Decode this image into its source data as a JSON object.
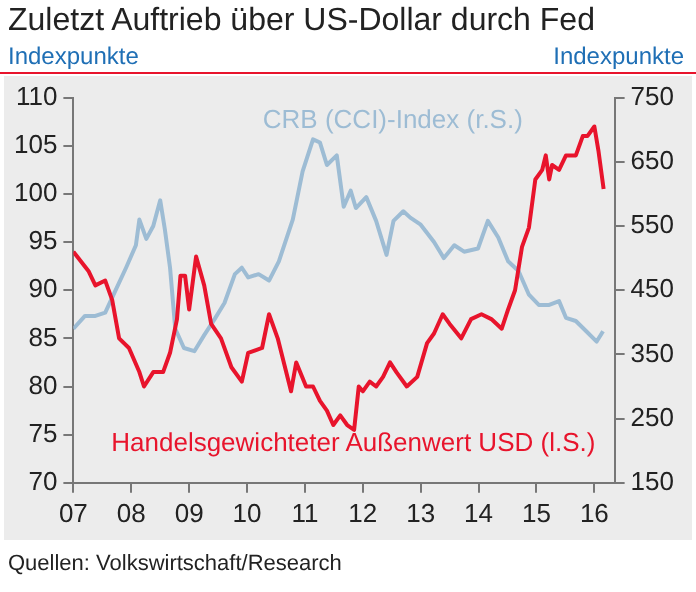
{
  "chart_data": {
    "type": "line",
    "title": "Zuletzt Auftrieb über US-Dollar durch Fed",
    "ylabel": "Indexpunkte",
    "y2label": "Indexpunkte",
    "annotations": [
      "Quellen: Volkswirtschaft/Research"
    ],
    "series": [
      {
        "name": "Handelsgewichteter Außenwert USD (l.S.)",
        "color": "#e8142c",
        "axis": "y",
        "x": [
          2007.0,
          2007.26,
          2007.38,
          2007.55,
          2007.67,
          2007.79,
          2007.96,
          2008.14,
          2008.22,
          2008.38,
          2008.55,
          2008.67,
          2008.79,
          2008.85,
          2008.93,
          2009.0,
          2009.12,
          2009.26,
          2009.38,
          2009.55,
          2009.73,
          2009.91,
          2010.02,
          2010.26,
          2010.38,
          2010.53,
          2010.76,
          2010.85,
          2011.02,
          2011.14,
          2011.26,
          2011.38,
          2011.49,
          2011.61,
          2011.73,
          2011.85,
          2011.93,
          2012.0,
          2012.12,
          2012.23,
          2012.35,
          2012.47,
          2012.58,
          2012.76,
          2012.94,
          2013.11,
          2013.23,
          2013.38,
          2013.5,
          2013.7,
          2013.87,
          2014.05,
          2014.22,
          2014.4,
          2014.51,
          2014.63,
          2014.75,
          2014.87,
          2014.98,
          2015.1,
          2015.16,
          2015.22,
          2015.27,
          2015.39,
          2015.51,
          2015.68,
          2015.8,
          2015.88,
          2016.0,
          2016.07,
          2016.16
        ],
        "values": [
          94,
          92,
          90.5,
          91,
          89,
          85,
          84,
          81.5,
          80,
          81.5,
          81.5,
          83.5,
          87,
          91.5,
          91.5,
          88,
          93.5,
          90.5,
          86.5,
          85,
          82,
          80.5,
          83.5,
          84,
          87.5,
          85,
          79.5,
          82.5,
          80,
          80,
          78.5,
          77.5,
          76,
          77,
          76,
          75.5,
          80,
          79.5,
          80.5,
          80,
          81,
          82.5,
          81.5,
          80,
          81,
          84.5,
          85.5,
          87.5,
          86.5,
          85,
          87,
          87.5,
          87,
          86,
          88,
          90,
          94.5,
          96.5,
          101.5,
          102.5,
          104,
          101.5,
          103,
          102.5,
          104,
          104,
          106,
          106,
          107,
          104.5,
          100.5
        ]
      },
      {
        "name": "CRB (CCI)-Index (r.S.)",
        "color": "#9dbcd4",
        "axis": "y2",
        "x": [
          2007.0,
          2007.2,
          2007.38,
          2007.55,
          2007.73,
          2007.91,
          2008.08,
          2008.14,
          2008.26,
          2008.38,
          2008.5,
          2008.58,
          2008.67,
          2008.76,
          2008.91,
          2009.09,
          2009.26,
          2009.44,
          2009.61,
          2009.79,
          2009.91,
          2010.02,
          2010.2,
          2010.38,
          2010.55,
          2010.79,
          2010.96,
          2011.14,
          2011.26,
          2011.38,
          2011.55,
          2011.67,
          2011.79,
          2011.88,
          2012.06,
          2012.23,
          2012.41,
          2012.53,
          2012.7,
          2012.82,
          2013.0,
          2013.23,
          2013.4,
          2013.58,
          2013.75,
          2013.99,
          2014.16,
          2014.34,
          2014.51,
          2014.69,
          2014.87,
          2015.04,
          2015.22,
          2015.39,
          2015.51,
          2015.68,
          2015.86,
          2016.04,
          2016.15
        ],
        "values": [
          390,
          410,
          410,
          415,
          450,
          485,
          520,
          560,
          530,
          550,
          590,
          545,
          485,
          390,
          360,
          355,
          380,
          405,
          430,
          475,
          485,
          470,
          475,
          465,
          495,
          560,
          635,
          685,
          680,
          645,
          660,
          580,
          605,
          578,
          595,
          558,
          505,
          558,
          573,
          563,
          552,
          525,
          500,
          520,
          510,
          515,
          558,
          532,
          495,
          480,
          443,
          427,
          427,
          433,
          407,
          402,
          386,
          370,
          386
        ]
      }
    ],
    "xlim": [
      2007,
      2016.35
    ],
    "xticks": [
      {
        "value": 2007,
        "label": "07"
      },
      {
        "value": 2008,
        "label": "08"
      },
      {
        "value": 2009,
        "label": "09"
      },
      {
        "value": 2010,
        "label": "10"
      },
      {
        "value": 2011,
        "label": "11"
      },
      {
        "value": 2012,
        "label": "12"
      },
      {
        "value": 2013,
        "label": "13"
      },
      {
        "value": 2014,
        "label": "14"
      },
      {
        "value": 2015,
        "label": "15"
      },
      {
        "value": 2016,
        "label": "16"
      }
    ],
    "ylim": [
      70,
      110
    ],
    "yticks": [
      70,
      75,
      80,
      85,
      90,
      95,
      100,
      105,
      110
    ],
    "y2lim": [
      150,
      750
    ],
    "y2ticks": [
      150,
      250,
      350,
      450,
      550,
      650,
      750
    ],
    "grid": false,
    "legend": false
  }
}
